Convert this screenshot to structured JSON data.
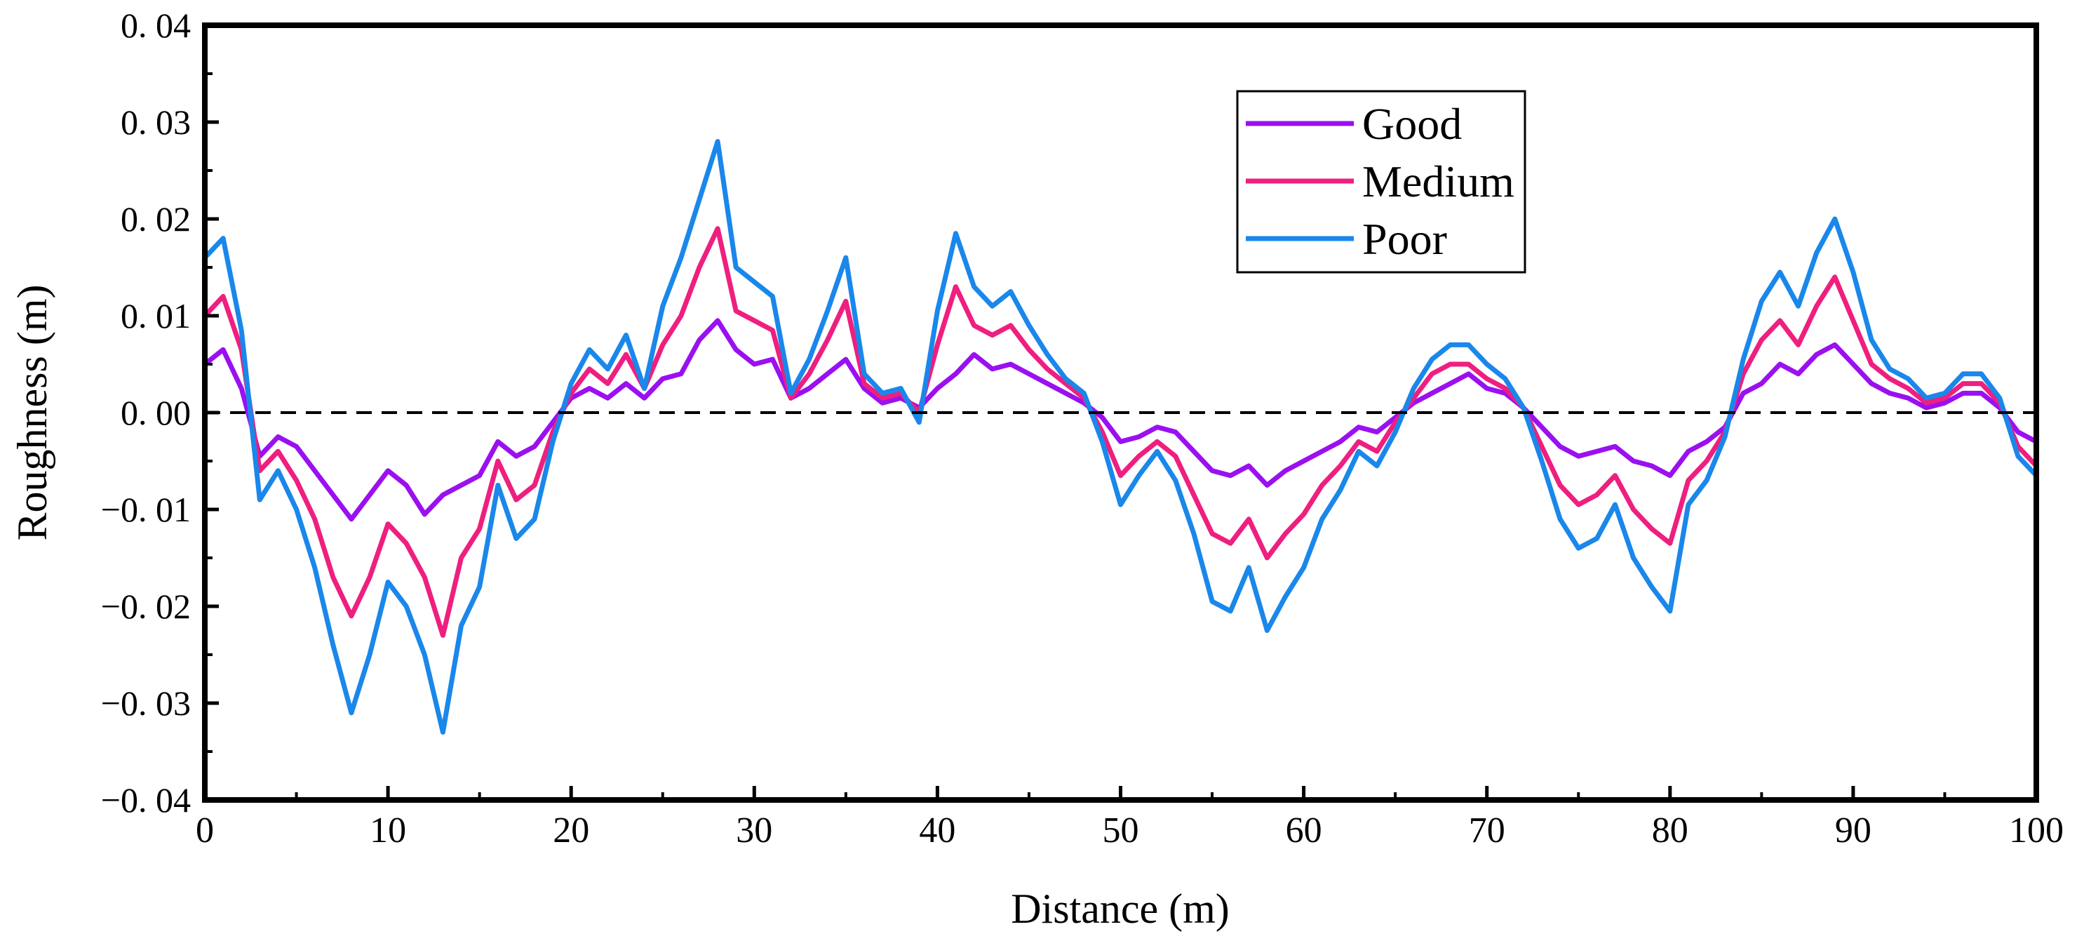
{
  "chart_data": {
    "type": "line",
    "title": "",
    "xlabel": "Distance (m)",
    "ylabel": "Roughness (m)",
    "xlim": [
      0,
      100
    ],
    "ylim": [
      -0.04,
      0.04
    ],
    "x_ticks": [
      0,
      10,
      20,
      30,
      40,
      50,
      60,
      70,
      80,
      90,
      100
    ],
    "x_tick_labels": [
      "0",
      "10",
      "20",
      "30",
      "40",
      "50",
      "60",
      "70",
      "80",
      "90",
      "100"
    ],
    "y_ticks": [
      0.04,
      0.03,
      0.02,
      0.01,
      0.0,
      -0.01,
      -0.02,
      -0.03,
      -0.04
    ],
    "y_tick_labels": [
      "0. 04",
      "0. 03",
      "0. 02",
      "0. 01",
      "0. 00",
      "−0. 01",
      "−0. 02",
      "−0. 03",
      "−0. 04"
    ],
    "reference_line": {
      "y": 0.0,
      "style": "dashed",
      "color": "#000000"
    },
    "grid": false,
    "legend_position": "top-right",
    "x": [
      0,
      1,
      2,
      3,
      4,
      5,
      6,
      7,
      8,
      9,
      10,
      11,
      12,
      13,
      14,
      15,
      16,
      17,
      18,
      19,
      20,
      21,
      22,
      23,
      24,
      25,
      26,
      27,
      28,
      29,
      30,
      31,
      32,
      33,
      34,
      35,
      36,
      37,
      38,
      39,
      40,
      41,
      42,
      43,
      44,
      45,
      46,
      47,
      48,
      49,
      50,
      51,
      52,
      53,
      54,
      55,
      56,
      57,
      58,
      59,
      60,
      61,
      62,
      63,
      64,
      65,
      66,
      67,
      68,
      69,
      70,
      71,
      72,
      73,
      74,
      75,
      76,
      77,
      78,
      79,
      80,
      81,
      82,
      83,
      84,
      85,
      86,
      87,
      88,
      89,
      90,
      91,
      92,
      93,
      94,
      95,
      96,
      97,
      98,
      99,
      100
    ],
    "series": [
      {
        "name": "Good",
        "color": "#9a10f0",
        "values": [
          0.005,
          0.0065,
          0.0025,
          -0.0045,
          -0.0025,
          -0.0035,
          -0.006,
          -0.0085,
          -0.011,
          -0.0085,
          -0.006,
          -0.0075,
          -0.0105,
          -0.0085,
          -0.0075,
          -0.0065,
          -0.003,
          -0.0045,
          -0.0035,
          -0.001,
          0.0015,
          0.0025,
          0.0015,
          0.003,
          0.0015,
          0.0035,
          0.004,
          0.0075,
          0.0095,
          0.0065,
          0.005,
          0.0055,
          0.0015,
          0.0025,
          0.004,
          0.0055,
          0.0025,
          0.001,
          0.0015,
          0.0005,
          0.0025,
          0.004,
          0.006,
          0.0045,
          0.005,
          0.004,
          0.003,
          0.002,
          0.001,
          -0.0005,
          -0.003,
          -0.0025,
          -0.0015,
          -0.002,
          -0.004,
          -0.006,
          -0.0065,
          -0.0055,
          -0.0075,
          -0.006,
          -0.005,
          -0.004,
          -0.003,
          -0.0015,
          -0.002,
          -0.0005,
          0.001,
          0.002,
          0.003,
          0.004,
          0.0025,
          0.002,
          0.0005,
          -0.0015,
          -0.0035,
          -0.0045,
          -0.004,
          -0.0035,
          -0.005,
          -0.0055,
          -0.0065,
          -0.004,
          -0.003,
          -0.0015,
          0.002,
          0.003,
          0.005,
          0.004,
          0.006,
          0.007,
          0.005,
          0.003,
          0.002,
          0.0015,
          0.0005,
          0.001,
          0.002,
          0.002,
          0.0005,
          -0.002,
          -0.003
        ]
      },
      {
        "name": "Medium",
        "color": "#ee1f7f",
        "values": [
          0.01,
          0.012,
          0.0065,
          -0.006,
          -0.004,
          -0.007,
          -0.011,
          -0.017,
          -0.021,
          -0.017,
          -0.0115,
          -0.0135,
          -0.017,
          -0.023,
          -0.015,
          -0.012,
          -0.005,
          -0.009,
          -0.0075,
          -0.002,
          0.002,
          0.0045,
          0.003,
          0.006,
          0.0025,
          0.007,
          0.01,
          0.015,
          0.019,
          0.0105,
          0.0095,
          0.0085,
          0.0015,
          0.004,
          0.0075,
          0.0115,
          0.003,
          0.0015,
          0.002,
          0.0,
          0.007,
          0.013,
          0.009,
          0.008,
          0.009,
          0.0065,
          0.0045,
          0.003,
          0.0015,
          -0.002,
          -0.0065,
          -0.0045,
          -0.003,
          -0.0045,
          -0.0085,
          -0.0125,
          -0.0135,
          -0.011,
          -0.015,
          -0.0125,
          -0.0105,
          -0.0075,
          -0.0055,
          -0.003,
          -0.004,
          -0.001,
          0.0015,
          0.004,
          0.005,
          0.005,
          0.0035,
          0.0025,
          0.0005,
          -0.0035,
          -0.0075,
          -0.0095,
          -0.0085,
          -0.0065,
          -0.01,
          -0.012,
          -0.0135,
          -0.007,
          -0.005,
          -0.002,
          0.004,
          0.0075,
          0.0095,
          0.007,
          0.011,
          0.014,
          0.0095,
          0.005,
          0.0035,
          0.0025,
          0.001,
          0.0015,
          0.003,
          0.003,
          0.001,
          -0.0035,
          -0.0055
        ]
      },
      {
        "name": "Poor",
        "color": "#1a87ea",
        "values": [
          0.016,
          0.018,
          0.0085,
          -0.009,
          -0.006,
          -0.01,
          -0.016,
          -0.024,
          -0.031,
          -0.025,
          -0.0175,
          -0.02,
          -0.025,
          -0.033,
          -0.022,
          -0.018,
          -0.0075,
          -0.013,
          -0.011,
          -0.003,
          0.003,
          0.0065,
          0.0045,
          0.008,
          0.0025,
          0.011,
          0.016,
          0.022,
          0.028,
          0.015,
          0.0135,
          0.012,
          0.002,
          0.0055,
          0.0105,
          0.016,
          0.004,
          0.002,
          0.0025,
          -0.001,
          0.0105,
          0.0185,
          0.013,
          0.011,
          0.0125,
          0.009,
          0.006,
          0.0035,
          0.002,
          -0.003,
          -0.0095,
          -0.0065,
          -0.004,
          -0.007,
          -0.0125,
          -0.0195,
          -0.0205,
          -0.016,
          -0.0225,
          -0.019,
          -0.016,
          -0.011,
          -0.008,
          -0.004,
          -0.0055,
          -0.002,
          0.0025,
          0.0055,
          0.007,
          0.007,
          0.005,
          0.0035,
          0.0005,
          -0.005,
          -0.011,
          -0.014,
          -0.013,
          -0.0095,
          -0.015,
          -0.018,
          -0.0205,
          -0.0095,
          -0.007,
          -0.0025,
          0.0055,
          0.0115,
          0.0145,
          0.011,
          0.0165,
          0.02,
          0.0145,
          0.0075,
          0.0045,
          0.0035,
          0.0015,
          0.002,
          0.004,
          0.004,
          0.0015,
          -0.0045,
          -0.0065
        ]
      }
    ]
  }
}
